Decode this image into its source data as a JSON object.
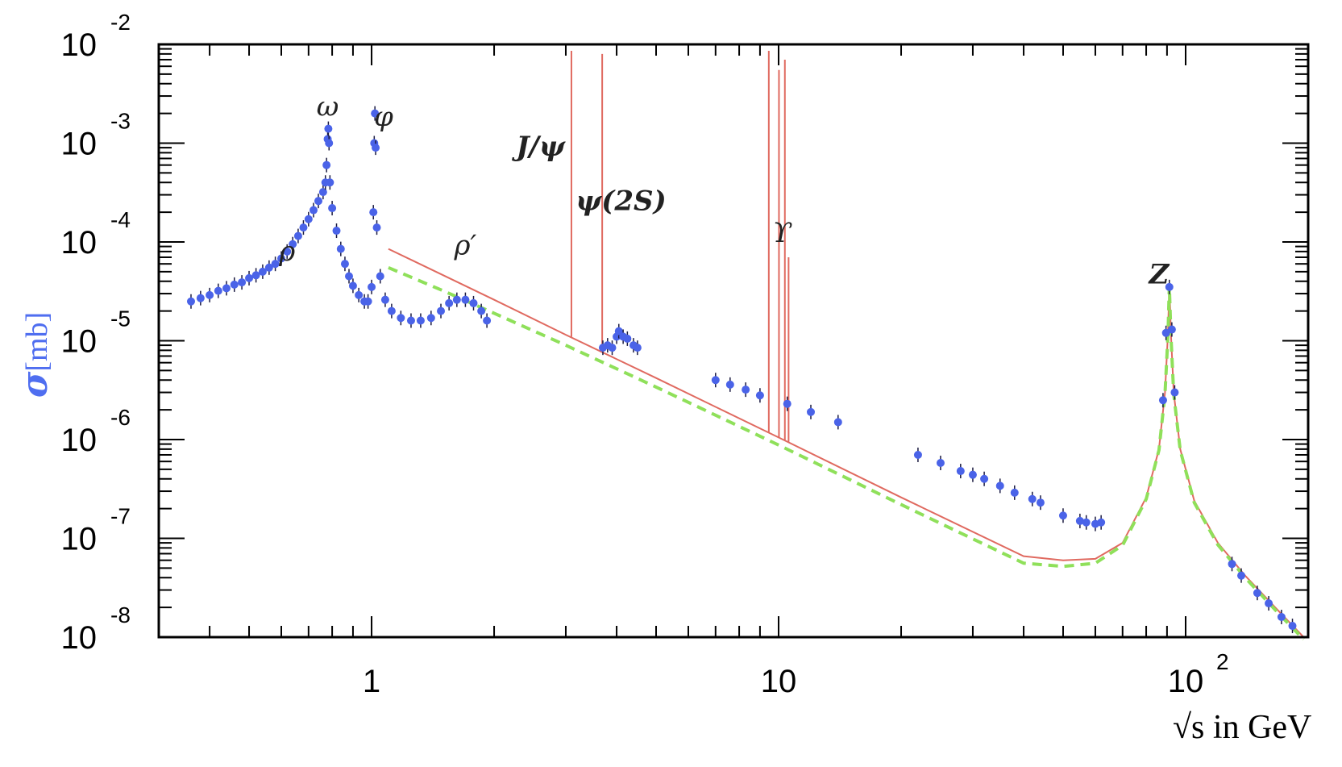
{
  "chart_data": {
    "type": "scatter",
    "title": "",
    "xlabel": {
      "prefix": "√s",
      "text": " in GeV"
    },
    "ylabel": {
      "symbol": "σ",
      "unit": "[mb]"
    },
    "x_scale": "log",
    "y_scale": "log",
    "xlim": [
      0.3,
      200
    ],
    "ylim": [
      1e-08,
      0.01
    ],
    "x_ticks": [
      {
        "value": 1,
        "base": "1",
        "exp": ""
      },
      {
        "value": 10,
        "base": "10",
        "exp": ""
      },
      {
        "value": 100,
        "base": "10",
        "exp": "2"
      }
    ],
    "y_ticks": [
      {
        "value": 0.01,
        "base": "10",
        "exp": "-2"
      },
      {
        "value": 0.001,
        "base": "10",
        "exp": "-3"
      },
      {
        "value": 0.0001,
        "base": "10",
        "exp": "-4"
      },
      {
        "value": 1e-05,
        "base": "10",
        "exp": "-5"
      },
      {
        "value": 1e-06,
        "base": "10",
        "exp": "-6"
      },
      {
        "value": 1e-07,
        "base": "10",
        "exp": "-7"
      },
      {
        "value": 1e-08,
        "base": "10",
        "exp": "-8"
      }
    ],
    "annotations": [
      {
        "text": "ρ",
        "x": 0.62,
        "y": 6.5e-05,
        "style": "ann"
      },
      {
        "text": "ω",
        "x": 0.78,
        "y": 0.0019,
        "style": "ann"
      },
      {
        "text": "φ",
        "x": 1.07,
        "y": 0.0015,
        "style": "ann"
      },
      {
        "text": "ρ′",
        "x": 1.7,
        "y": 7.5e-05,
        "style": "ann"
      },
      {
        "text": "J/ψ",
        "x": 2.6,
        "y": 0.00075,
        "style": "ann-bold"
      },
      {
        "text": "ψ(2S)",
        "x": 4.1,
        "y": 0.00021,
        "style": "ann-bold"
      },
      {
        "text": "ϒ",
        "x": 10.2,
        "y": 0.0001,
        "style": "ann"
      },
      {
        "text": "Z",
        "x": 86,
        "y": 3.8e-05,
        "style": "ann-bold"
      }
    ],
    "series": [
      {
        "color": "#4a63e8",
        "kind": "measurements",
        "points": [
          [
            0.36,
            2.5e-05
          ],
          [
            0.38,
            2.7e-05
          ],
          [
            0.4,
            2.9e-05
          ],
          [
            0.42,
            3.2e-05
          ],
          [
            0.44,
            3.4e-05
          ],
          [
            0.46,
            3.7e-05
          ],
          [
            0.48,
            3.9e-05
          ],
          [
            0.5,
            4.3e-05
          ],
          [
            0.52,
            4.6e-05
          ],
          [
            0.54,
            5e-05
          ],
          [
            0.56,
            5.5e-05
          ],
          [
            0.58,
            6e-05
          ],
          [
            0.6,
            6.8e-05
          ],
          [
            0.62,
            8e-05
          ],
          [
            0.64,
            9.5e-05
          ],
          [
            0.66,
            0.000115
          ],
          [
            0.68,
            0.00014
          ],
          [
            0.7,
            0.00017
          ],
          [
            0.72,
            0.00021
          ],
          [
            0.74,
            0.00026
          ],
          [
            0.76,
            0.00032
          ],
          [
            0.77,
            0.0004
          ],
          [
            0.775,
            0.0006
          ],
          [
            0.78,
            0.0011
          ],
          [
            0.783,
            0.0014
          ],
          [
            0.786,
            0.001
          ],
          [
            0.79,
            0.0004
          ],
          [
            0.8,
            0.00022
          ],
          [
            0.82,
            0.00013
          ],
          [
            0.84,
            8.5e-05
          ],
          [
            0.86,
            6e-05
          ],
          [
            0.88,
            4.5e-05
          ],
          [
            0.9,
            3.6e-05
          ],
          [
            0.93,
            2.9e-05
          ],
          [
            0.96,
            2.5e-05
          ],
          [
            0.98,
            2.5e-05
          ],
          [
            1.0,
            3.5e-05
          ],
          [
            1.01,
            0.0002
          ],
          [
            1.015,
            0.001
          ],
          [
            1.019,
            0.002
          ],
          [
            1.023,
            0.0009
          ],
          [
            1.03,
            0.00014
          ],
          [
            1.05,
            4.5e-05
          ],
          [
            1.08,
            2.6e-05
          ],
          [
            1.12,
            2e-05
          ],
          [
            1.18,
            1.7e-05
          ],
          [
            1.25,
            1.6e-05
          ],
          [
            1.32,
            1.6e-05
          ],
          [
            1.4,
            1.7e-05
          ],
          [
            1.48,
            2e-05
          ],
          [
            1.55,
            2.4e-05
          ],
          [
            1.62,
            2.6e-05
          ],
          [
            1.7,
            2.6e-05
          ],
          [
            1.78,
            2.4e-05
          ],
          [
            1.86,
            2e-05
          ],
          [
            1.92,
            1.6e-05
          ],
          [
            3.7,
            8.5e-06
          ],
          [
            3.8,
            9e-06
          ],
          [
            3.9,
            8.5e-06
          ],
          [
            4.0,
            1.1e-05
          ],
          [
            4.05,
            1.25e-05
          ],
          [
            4.15,
            1.1e-05
          ],
          [
            4.25,
            1.05e-05
          ],
          [
            4.4,
            9e-06
          ],
          [
            4.5,
            8.5e-06
          ],
          [
            7.0,
            4e-06
          ],
          [
            7.6,
            3.6e-06
          ],
          [
            8.3,
            3.2e-06
          ],
          [
            9.0,
            2.8e-06
          ],
          [
            10.5,
            2.3e-06
          ],
          [
            12.0,
            1.9e-06
          ],
          [
            14.0,
            1.5e-06
          ],
          [
            22.0,
            7e-07
          ],
          [
            25.0,
            5.8e-07
          ],
          [
            28.0,
            4.8e-07
          ],
          [
            30.0,
            4.4e-07
          ],
          [
            32.0,
            4e-07
          ],
          [
            35.0,
            3.4e-07
          ],
          [
            38.0,
            2.9e-07
          ],
          [
            42.0,
            2.5e-07
          ],
          [
            44.0,
            2.3e-07
          ],
          [
            50.0,
            1.7e-07
          ],
          [
            55.0,
            1.5e-07
          ],
          [
            57.0,
            1.45e-07
          ],
          [
            60.0,
            1.4e-07
          ],
          [
            62.0,
            1.45e-07
          ],
          [
            88.0,
            2.5e-06
          ],
          [
            89.5,
            1.2e-05
          ],
          [
            91.2,
            3.5e-05
          ],
          [
            92.5,
            1.3e-05
          ],
          [
            94.0,
            3e-06
          ],
          [
            130.0,
            5.5e-08
          ],
          [
            137.0,
            4.2e-08
          ],
          [
            150.0,
            2.8e-08
          ],
          [
            160.0,
            2.2e-08
          ],
          [
            172.0,
            1.6e-08
          ],
          [
            183.0,
            1.3e-08
          ]
        ]
      },
      {
        "color": "#e06a60",
        "kind": "model-curve",
        "points": [
          [
            1.1,
            8.5e-05
          ],
          [
            1.5,
            4.6e-05
          ],
          [
            2,
            2.6e-05
          ],
          [
            3,
            1.15e-05
          ],
          [
            5,
            4.2e-06
          ],
          [
            10,
            1.05e-06
          ],
          [
            20,
            2.6e-07
          ],
          [
            40,
            6.6e-08
          ],
          [
            50,
            6e-08
          ],
          [
            60,
            6.2e-08
          ],
          [
            70,
            9e-08
          ],
          [
            80,
            2.6e-07
          ],
          [
            86,
            8e-07
          ],
          [
            89,
            3e-06
          ],
          [
            90.5,
            1.2e-05
          ],
          [
            91.2,
            3.8e-05
          ],
          [
            92,
            1.2e-05
          ],
          [
            93.5,
            3e-06
          ],
          [
            97,
            8e-07
          ],
          [
            105,
            2.4e-07
          ],
          [
            120,
            9e-08
          ],
          [
            140,
            4.2e-08
          ],
          [
            170,
            1.8e-08
          ],
          [
            195,
            1e-08
          ]
        ]
      },
      {
        "color": "#8fe05a",
        "kind": "model-curve-dashed",
        "points": [
          [
            1.1,
            5.5e-05
          ],
          [
            1.5,
            3.2e-05
          ],
          [
            2,
            1.9e-05
          ],
          [
            3,
            9e-06
          ],
          [
            5,
            3.4e-06
          ],
          [
            10,
            8.8e-07
          ],
          [
            20,
            2.2e-07
          ],
          [
            40,
            5.6e-08
          ],
          [
            50,
            5.2e-08
          ],
          [
            60,
            5.6e-08
          ],
          [
            70,
            8.5e-08
          ],
          [
            80,
            2.5e-07
          ],
          [
            86,
            7.8e-07
          ],
          [
            89,
            2.9e-06
          ],
          [
            90.5,
            1.15e-05
          ],
          [
            91.2,
            3.6e-05
          ],
          [
            92,
            1.15e-05
          ],
          [
            93.5,
            2.9e-06
          ],
          [
            97,
            7.8e-07
          ],
          [
            105,
            2.3e-07
          ],
          [
            120,
            8.6e-08
          ],
          [
            140,
            4e-08
          ],
          [
            170,
            1.7e-08
          ],
          [
            195,
            9.5e-09
          ]
        ]
      },
      {
        "color": "#e06a60",
        "kind": "resonance-spikes",
        "points": [
          [
            3.097,
            0.01
          ],
          [
            3.686,
            0.008
          ],
          [
            9.46,
            0.01
          ],
          [
            10.02,
            0.0055
          ],
          [
            10.36,
            0.007
          ],
          [
            10.58,
            7e-05
          ]
        ]
      }
    ]
  }
}
